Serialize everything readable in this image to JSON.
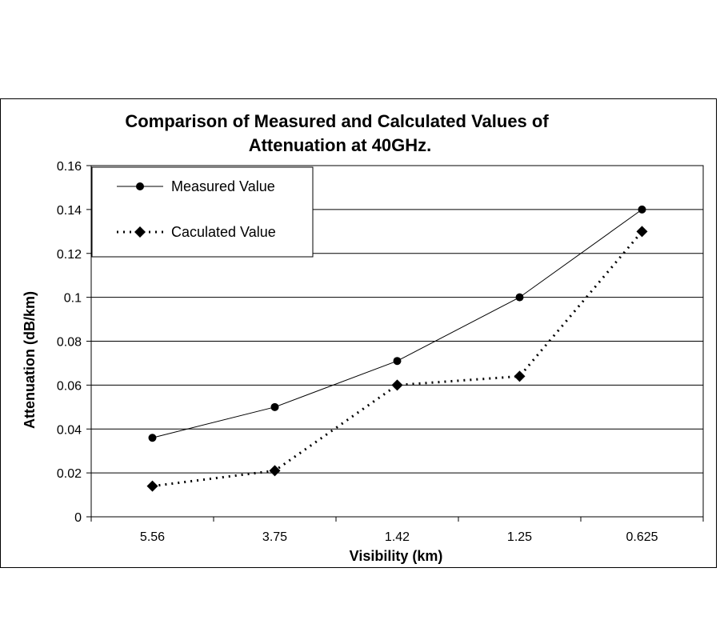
{
  "chart_data": {
    "type": "line",
    "title_lines": [
      "Comparison of Measured and Calculated Values of",
      "Attenuation at 40GHz."
    ],
    "xlabel": "Visibility (km)",
    "ylabel": "Attenuation (dB/km)",
    "categories": [
      "5.56",
      "3.75",
      "1.42",
      "1.25",
      "0.625"
    ],
    "ylim": [
      0,
      0.16
    ],
    "yticks": [
      "0",
      "0.02",
      "0.04",
      "0.06",
      "0.08",
      "0.1",
      "0.12",
      "0.14",
      "0.16"
    ],
    "grid": true,
    "legend_position": "top-left",
    "series": [
      {
        "name": "Measured Value",
        "values": [
          0.036,
          0.05,
          0.071,
          0.1,
          0.14
        ],
        "marker": "circle",
        "line": "solid",
        "color": "#000000"
      },
      {
        "name": "Caculated Value",
        "values": [
          0.014,
          0.021,
          0.06,
          0.064,
          0.13
        ],
        "marker": "diamond",
        "line": "dotted",
        "color": "#000000"
      }
    ]
  }
}
